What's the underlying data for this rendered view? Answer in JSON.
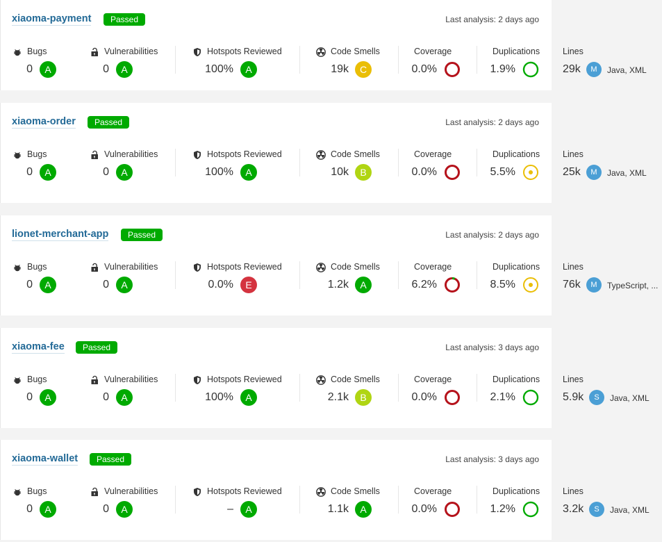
{
  "labels": {
    "bugs": "Bugs",
    "vulnerabilities": "Vulnerabilities",
    "hotspots": "Hotspots Reviewed",
    "smells": "Code Smells",
    "coverage": "Coverage",
    "duplications": "Duplications",
    "lines": "Lines"
  },
  "colors": {
    "A": "#00aa00",
    "B": "#b0d513",
    "C": "#eabe06",
    "E": "#d4333f"
  },
  "projects": [
    {
      "name": "xiaoma-payment",
      "status": "Passed",
      "last": "Last analysis: 2 days ago",
      "bugs": "0",
      "bugs_r": "A",
      "vulns": "0",
      "vulns_r": "A",
      "hotspots": "100%",
      "hotspots_r": "A",
      "smells": "19k",
      "smells_r": "C",
      "coverage": "0.0%",
      "coverage_pct": 0,
      "dup": "1.9%",
      "dup_kind": "green-ring",
      "lines": "29k",
      "avatar": "M",
      "langs": "Java, XML"
    },
    {
      "name": "xiaoma-order",
      "status": "Passed",
      "last": "Last analysis: 2 days ago",
      "bugs": "0",
      "bugs_r": "A",
      "vulns": "0",
      "vulns_r": "A",
      "hotspots": "100%",
      "hotspots_r": "A",
      "smells": "10k",
      "smells_r": "B",
      "coverage": "0.0%",
      "coverage_pct": 0,
      "dup": "5.5%",
      "dup_kind": "yellow-dot",
      "lines": "25k",
      "avatar": "M",
      "langs": "Java, XML"
    },
    {
      "name": "lionet-merchant-app",
      "status": "Passed",
      "last": "Last analysis: 2 days ago",
      "bugs": "0",
      "bugs_r": "A",
      "vulns": "0",
      "vulns_r": "A",
      "hotspots": "0.0%",
      "hotspots_r": "E",
      "smells": "1.2k",
      "smells_r": "A",
      "coverage": "6.2%",
      "coverage_pct": 6.2,
      "dup": "8.5%",
      "dup_kind": "yellow-dot",
      "lines": "76k",
      "avatar": "M",
      "langs": "TypeScript, ..."
    },
    {
      "name": "xiaoma-fee",
      "status": "Passed",
      "last": "Last analysis: 3 days ago",
      "bugs": "0",
      "bugs_r": "A",
      "vulns": "0",
      "vulns_r": "A",
      "hotspots": "100%",
      "hotspots_r": "A",
      "smells": "2.1k",
      "smells_r": "B",
      "coverage": "0.0%",
      "coverage_pct": 0,
      "dup": "2.1%",
      "dup_kind": "green-ring",
      "lines": "5.9k",
      "avatar": "S",
      "langs": "Java, XML"
    },
    {
      "name": "xiaoma-wallet",
      "status": "Passed",
      "last": "Last analysis: 3 days ago",
      "bugs": "0",
      "bugs_r": "A",
      "vulns": "0",
      "vulns_r": "A",
      "hotspots": "–",
      "hotspots_r": "A",
      "smells": "1.1k",
      "smells_r": "A",
      "coverage": "0.0%",
      "coverage_pct": 0,
      "dup": "1.2%",
      "dup_kind": "green-ring",
      "lines": "3.2k",
      "avatar": "S",
      "langs": "Java, XML"
    }
  ]
}
